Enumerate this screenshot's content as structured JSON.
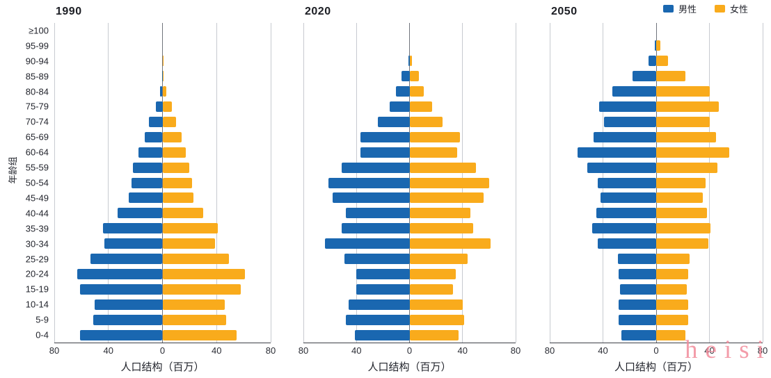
{
  "figure": {
    "background": "#ffffff"
  },
  "colors": {
    "male": "#1a67b0",
    "female": "#f9ab1c",
    "gridline": "#c7cad0",
    "center_line": "#70747c",
    "axis_line": "#3c3f46"
  },
  "legend": {
    "position": "top-right",
    "items": [
      {
        "label": "男性",
        "color": "#1a67b0"
      },
      {
        "label": "女性",
        "color": "#f9ab1c"
      }
    ]
  },
  "axis": {
    "x_title": "人口结构（百万）",
    "y_title": "年龄组",
    "x_ticks": [
      "80",
      "40",
      "0",
      "40",
      "80"
    ],
    "x_max": 80
  },
  "watermark": {
    "text": "heisi",
    "color": "#f28b9b"
  },
  "chart_data": [
    {
      "type": "bar",
      "subtype": "population-pyramid",
      "title": "1990",
      "xlabel": "人口结构（百万）",
      "ylabel": "年龄组",
      "xlim": [
        -80,
        80
      ],
      "grid": true,
      "unit": "百万",
      "categories": [
        "0-4",
        "5-9",
        "10-14",
        "15-19",
        "20-24",
        "25-29",
        "30-34",
        "35-39",
        "40-44",
        "45-49",
        "50-54",
        "55-59",
        "60-64",
        "65-69",
        "70-74",
        "75-79",
        "80-84",
        "85-89",
        "90-94",
        "95-99",
        "≥100"
      ],
      "series": [
        {
          "name": "男性",
          "side": "left",
          "values": [
            61,
            51,
            50,
            61,
            63,
            53,
            43,
            44,
            33,
            25,
            23,
            22,
            18,
            13,
            10,
            5,
            2,
            0.5,
            0,
            0,
            0
          ]
        },
        {
          "name": "女性",
          "side": "right",
          "values": [
            55,
            47,
            46,
            58,
            61,
            49,
            39,
            41,
            30,
            23,
            22,
            20,
            17,
            14,
            10,
            7,
            3,
            1,
            0.3,
            0,
            0
          ]
        }
      ]
    },
    {
      "type": "bar",
      "subtype": "population-pyramid",
      "title": "2020",
      "xlabel": "人口结构（百万）",
      "ylabel": "年龄组",
      "xlim": [
        -80,
        80
      ],
      "grid": true,
      "unit": "百万",
      "categories": [
        "0-4",
        "5-9",
        "10-14",
        "15-19",
        "20-24",
        "25-29",
        "30-34",
        "35-39",
        "40-44",
        "45-49",
        "50-54",
        "55-59",
        "60-64",
        "65-69",
        "70-74",
        "75-79",
        "80-84",
        "85-89",
        "90-94",
        "95-99",
        "≥100"
      ],
      "series": [
        {
          "name": "男性",
          "side": "left",
          "values": [
            41,
            48,
            46,
            40,
            40,
            49,
            64,
            51,
            48,
            58,
            61,
            51,
            37,
            37,
            24,
            15,
            10,
            6,
            1,
            0,
            0
          ]
        },
        {
          "name": "女性",
          "side": "right",
          "values": [
            37,
            41,
            40,
            33,
            35,
            44,
            61,
            48,
            46,
            56,
            60,
            50,
            36,
            38,
            25,
            17,
            11,
            7,
            2,
            0,
            0
          ]
        }
      ]
    },
    {
      "type": "bar",
      "subtype": "population-pyramid",
      "title": "2050",
      "xlabel": "人口结构（百万）",
      "ylabel": "年龄组",
      "xlim": [
        -80,
        80
      ],
      "grid": true,
      "unit": "百万",
      "categories": [
        "0-4",
        "5-9",
        "10-14",
        "15-19",
        "20-24",
        "25-29",
        "30-34",
        "35-39",
        "40-44",
        "45-49",
        "50-54",
        "55-59",
        "60-64",
        "65-69",
        "70-74",
        "75-79",
        "80-84",
        "85-89",
        "90-94",
        "95-99",
        "≥100"
      ],
      "series": [
        {
          "name": "男性",
          "side": "left",
          "values": [
            26,
            28,
            28,
            27,
            28,
            29,
            44,
            48,
            45,
            42,
            44,
            52,
            59,
            47,
            39,
            43,
            33,
            18,
            6,
            1,
            0
          ]
        },
        {
          "name": "女性",
          "side": "right",
          "values": [
            22,
            24,
            24,
            23,
            24,
            25,
            39,
            41,
            38,
            35,
            37,
            46,
            55,
            45,
            40,
            47,
            40,
            22,
            9,
            3,
            0
          ]
        }
      ]
    }
  ]
}
